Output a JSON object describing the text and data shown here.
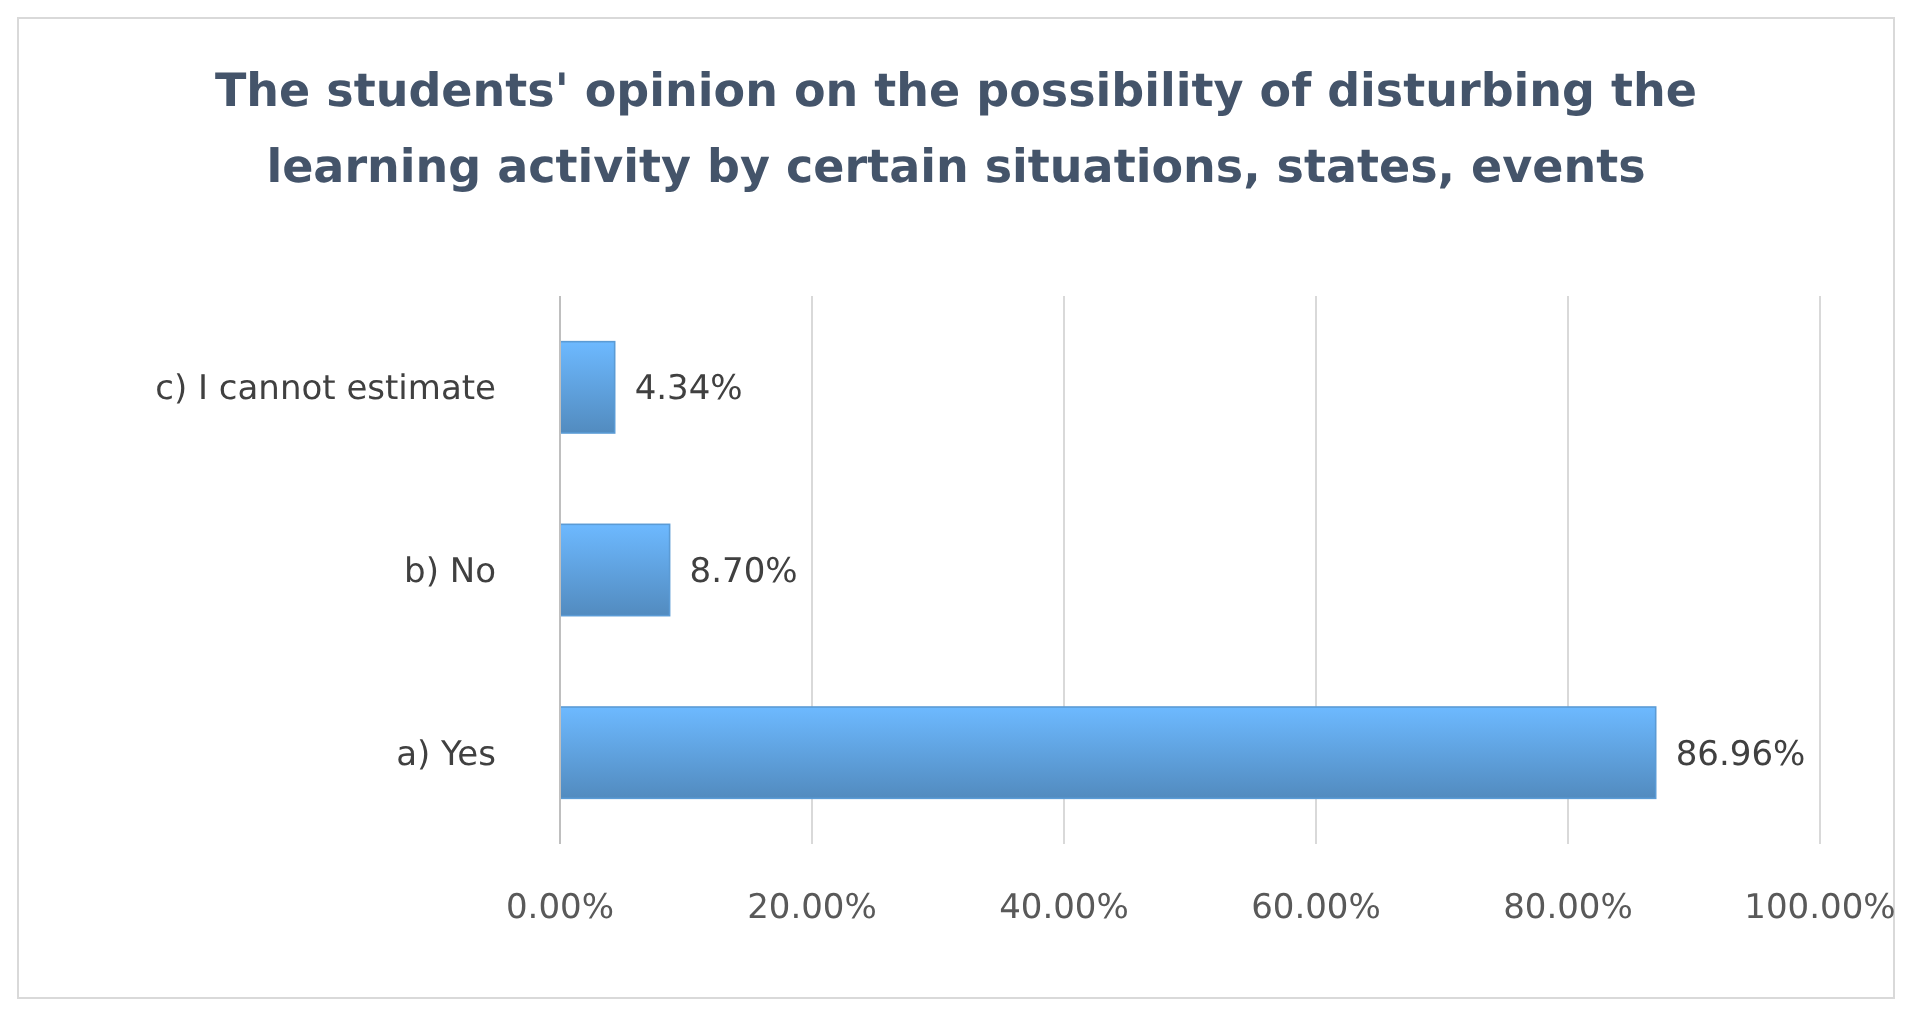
{
  "chart_data": {
    "type": "bar",
    "orientation": "horizontal",
    "title": "The students' opinion on the possibility of disturbing the learning activity by certain situations, states, events",
    "categories": [
      "c) I cannot estimate",
      "b) No",
      "a) Yes"
    ],
    "values": [
      4.34,
      8.7,
      86.96
    ],
    "color": "#5b9bd5",
    "value_labels": [
      "4.34%",
      "8.70%",
      "86.96%"
    ],
    "xlim": [
      0,
      100
    ],
    "xticks": [
      {
        "value": 0,
        "label": "0.00%"
      },
      {
        "value": 20,
        "label": "20.00%"
      },
      {
        "value": 40,
        "label": "40.00%"
      },
      {
        "value": 60,
        "label": "60.00%"
      },
      {
        "value": 80,
        "label": "80.00%"
      },
      {
        "value": 100,
        "label": "100.00%"
      }
    ],
    "grid": "x"
  }
}
